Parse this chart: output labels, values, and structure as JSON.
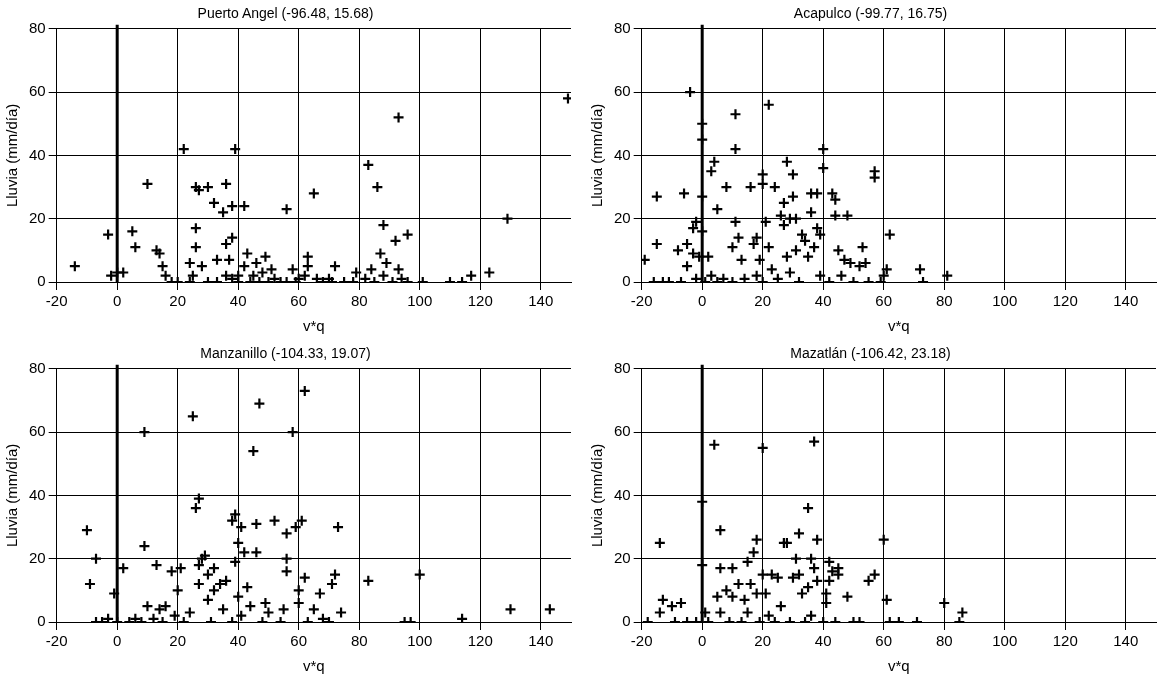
{
  "chart_data": [
    {
      "type": "scatter",
      "title": "Puerto Angel (-96.48, 15.68)",
      "xlabel": "v*q",
      "ylabel": "Lluvia (mm/día)",
      "color": "#000000",
      "marker": "cross",
      "grid": true,
      "xlim": [
        -20,
        150
      ],
      "xticks": [
        -20,
        0,
        20,
        40,
        60,
        80,
        100,
        120,
        140
      ],
      "ylim": [
        0,
        80
      ],
      "yticks": [
        0,
        20,
        40,
        60,
        80
      ],
      "ref_lines": [
        {
          "axis": "x",
          "value": 0,
          "color": "#000000"
        }
      ],
      "x": [
        -14,
        -3,
        -2,
        0,
        2,
        5,
        6,
        10,
        13,
        14,
        15,
        16,
        18,
        20,
        22,
        24,
        24,
        25,
        26,
        26,
        26,
        27,
        28,
        30,
        30,
        32,
        33,
        33,
        35,
        36,
        36,
        36,
        37,
        38,
        38,
        39,
        38,
        40,
        40,
        42,
        42,
        43,
        44,
        45,
        46,
        47,
        48,
        49,
        50,
        51,
        52,
        54,
        56,
        56,
        58,
        59,
        60,
        62,
        63,
        63,
        65,
        66,
        68,
        70,
        71,
        72,
        75,
        78,
        79,
        82,
        83,
        84,
        85,
        86,
        87,
        88,
        88,
        89,
        91,
        92,
        93,
        93,
        94,
        96,
        96,
        101,
        110,
        114,
        117,
        123,
        129,
        149
      ],
      "values": [
        5,
        15,
        2,
        3,
        3,
        16,
        11,
        31,
        10,
        9,
        5,
        2,
        0,
        0,
        42,
        0,
        6,
        2,
        17,
        11,
        30,
        29,
        5,
        30,
        0,
        25,
        0,
        7,
        22,
        31,
        12,
        2,
        7,
        24,
        14,
        42,
        1,
        0,
        2,
        5,
        24,
        9,
        0,
        2,
        6,
        0,
        3,
        8,
        0,
        4,
        1,
        0,
        0,
        23,
        4,
        0,
        1,
        2,
        8,
        5,
        28,
        1,
        0,
        1,
        0,
        5,
        0,
        0,
        3,
        1,
        37,
        4,
        0,
        30,
        9,
        18,
        2,
        6,
        0,
        13,
        52,
        4,
        1,
        15,
        0,
        0,
        0,
        0,
        2,
        3,
        20,
        58
      ]
    },
    {
      "type": "scatter",
      "title": "Acapulco (-99.77, 16.75)",
      "xlabel": "v*q",
      "ylabel": "Lluvia (mm/día)",
      "color": "#000000",
      "marker": "cross",
      "grid": true,
      "xlim": [
        -20,
        150
      ],
      "xticks": [
        -20,
        0,
        20,
        40,
        60,
        80,
        100,
        120,
        140
      ],
      "ylim": [
        0,
        80
      ],
      "yticks": [
        0,
        20,
        40,
        60,
        80
      ],
      "ref_lines": [
        {
          "axis": "x",
          "value": 0,
          "color": "#000000"
        }
      ],
      "x": [
        -19,
        -16,
        -15,
        -15,
        -13,
        -11,
        -8,
        -7,
        -6,
        -5,
        -5,
        -4,
        -3,
        -3,
        -2,
        -2,
        -1,
        0,
        0,
        0,
        0,
        1,
        2,
        3,
        3,
        4,
        5,
        5,
        7,
        8,
        10,
        10,
        11,
        11,
        11,
        12,
        13,
        14,
        16,
        17,
        18,
        18,
        19,
        20,
        20,
        20,
        21,
        22,
        22,
        23,
        24,
        25,
        26,
        27,
        27,
        28,
        28,
        29,
        29,
        30,
        30,
        31,
        31,
        32,
        33,
        34,
        35,
        36,
        36,
        37,
        38,
        38,
        39,
        39,
        40,
        40,
        42,
        43,
        44,
        44,
        45,
        46,
        47,
        48,
        49,
        50,
        52,
        53,
        54,
        55,
        57,
        57,
        59,
        60,
        61,
        62,
        72,
        73,
        81
      ],
      "values": [
        7,
        0,
        12,
        27,
        0,
        0,
        10,
        0,
        28,
        5,
        12,
        60,
        17,
        9,
        19,
        1,
        8,
        50,
        45,
        27,
        16,
        0,
        8,
        35,
        2,
        38,
        0,
        23,
        1,
        30,
        0,
        11,
        53,
        42,
        19,
        14,
        7,
        1,
        30,
        12,
        14,
        2,
        7,
        31,
        34,
        0,
        19,
        11,
        56,
        4,
        30,
        1,
        21,
        25,
        18,
        38,
        8,
        3,
        20,
        34,
        27,
        10,
        20,
        0,
        15,
        13,
        8,
        28,
        22,
        11,
        17,
        28,
        15,
        2,
        42,
        36,
        0,
        28,
        26,
        21,
        10,
        2,
        7,
        21,
        6,
        0,
        5,
        11,
        6,
        0,
        33,
        35,
        0,
        2,
        4,
        15,
        4,
        0,
        2
      ]
    },
    {
      "type": "scatter",
      "title": "Manzanillo (-104.33, 19.07)",
      "xlabel": "v*q",
      "ylabel": "Lluvia (mm/día)",
      "color": "#000000",
      "marker": "cross",
      "grid": true,
      "xlim": [
        -20,
        150
      ],
      "xticks": [
        -20,
        0,
        20,
        40,
        60,
        80,
        100,
        120,
        140
      ],
      "ylim": [
        0,
        80
      ],
      "yticks": [
        0,
        20,
        40,
        60,
        80
      ],
      "ref_lines": [
        {
          "axis": "x",
          "value": 0,
          "color": "#000000"
        }
      ],
      "x": [
        -10,
        -9,
        -7,
        -7,
        -5,
        -3,
        -1,
        0,
        2,
        4,
        6,
        8,
        9,
        9,
        10,
        12,
        13,
        14,
        15,
        16,
        18,
        19,
        20,
        21,
        22,
        24,
        25,
        26,
        27,
        27,
        27,
        28,
        29,
        30,
        30,
        31,
        32,
        32,
        34,
        35,
        36,
        38,
        38,
        39,
        39,
        40,
        40,
        41,
        41,
        42,
        43,
        44,
        45,
        46,
        46,
        47,
        48,
        49,
        50,
        52,
        54,
        55,
        56,
        56,
        56,
        58,
        59,
        60,
        60,
        61,
        62,
        62,
        63,
        65,
        67,
        68,
        70,
        71,
        72,
        73,
        74,
        83,
        95,
        97,
        100,
        114,
        130,
        143
      ],
      "values": [
        29,
        12,
        0,
        20,
        0,
        1,
        9,
        0,
        17,
        0,
        1,
        0,
        60,
        24,
        5,
        1,
        18,
        4,
        0,
        5,
        16,
        2,
        10,
        17,
        0,
        3,
        65,
        36,
        39,
        12,
        18,
        20,
        21,
        7,
        15,
        0,
        17,
        10,
        12,
        4,
        13,
        32,
        0,
        34,
        19,
        25,
        8,
        30,
        2,
        22,
        11,
        5,
        54,
        31,
        22,
        69,
        0,
        6,
        3,
        32,
        0,
        4,
        28,
        16,
        20,
        60,
        30,
        6,
        10,
        32,
        73,
        14,
        0,
        4,
        9,
        1,
        0,
        12,
        15,
        30,
        3,
        13,
        0,
        0,
        15,
        1,
        4,
        4
      ]
    },
    {
      "type": "scatter",
      "title": "Mazatlán (-106.42, 23.18)",
      "xlabel": "v*q",
      "ylabel": "Lluvia (mm/día)",
      "color": "#000000",
      "marker": "cross",
      "grid": true,
      "xlim": [
        -20,
        150
      ],
      "xticks": [
        -20,
        0,
        20,
        40,
        60,
        80,
        100,
        120,
        140
      ],
      "ylim": [
        0,
        80
      ],
      "yticks": [
        0,
        20,
        40,
        60,
        80
      ],
      "ref_lines": [
        {
          "axis": "x",
          "value": 0,
          "color": "#000000"
        }
      ],
      "x": [
        -18,
        -14,
        -14,
        -13,
        -10,
        -9,
        -7,
        -5,
        -2,
        0,
        0,
        1,
        2,
        4,
        5,
        6,
        6,
        6,
        8,
        9,
        10,
        10,
        12,
        13,
        14,
        15,
        15,
        16,
        17,
        18,
        18,
        19,
        20,
        20,
        21,
        22,
        23,
        24,
        25,
        26,
        27,
        28,
        29,
        30,
        31,
        32,
        32,
        33,
        34,
        35,
        35,
        36,
        36,
        37,
        37,
        38,
        38,
        40,
        41,
        41,
        42,
        42,
        43,
        44,
        45,
        45,
        48,
        50,
        52,
        55,
        57,
        60,
        61,
        62,
        65,
        71,
        80,
        86,
        85
      ],
      "values": [
        0,
        25,
        3,
        7,
        5,
        0,
        6,
        0,
        0,
        38,
        18,
        3,
        0,
        56,
        8,
        17,
        29,
        3,
        10,
        0,
        17,
        8,
        12,
        0,
        7,
        19,
        3,
        12,
        22,
        26,
        9,
        0,
        55,
        15,
        9,
        2,
        15,
        0,
        14,
        5,
        25,
        25,
        0,
        14,
        20,
        28,
        15,
        9,
        0,
        11,
        36,
        20,
        2,
        57,
        17,
        26,
        13,
        0,
        9,
        6,
        13,
        19,
        16,
        0,
        17,
        15,
        8,
        0,
        0,
        13,
        15,
        26,
        7,
        0,
        0,
        0,
        6,
        3,
        0
      ]
    }
  ]
}
